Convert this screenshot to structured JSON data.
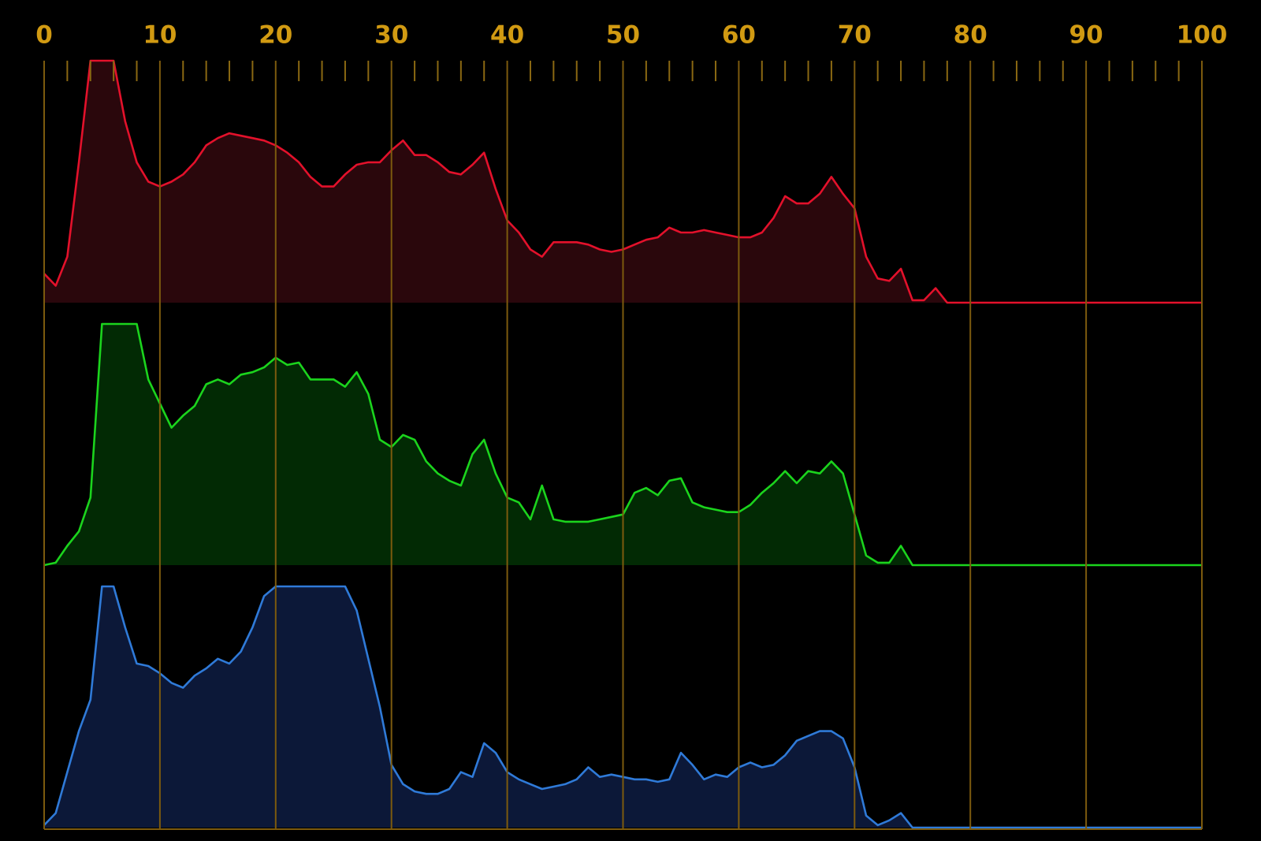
{
  "chart_data": {
    "type": "area",
    "xlim": [
      0,
      100
    ],
    "ylim": [
      0,
      100
    ],
    "xticks": [
      0,
      10,
      20,
      30,
      40,
      50,
      60,
      70,
      80,
      90,
      100
    ],
    "minor_xticks": [
      2,
      4,
      6,
      8,
      12,
      14,
      16,
      18,
      22,
      24,
      26,
      28,
      32,
      34,
      36,
      38,
      42,
      44,
      46,
      48,
      52,
      54,
      56,
      58,
      62,
      64,
      66,
      68,
      72,
      74,
      76,
      78,
      82,
      84,
      86,
      88,
      92,
      94,
      96,
      98
    ],
    "grid": true,
    "x": [
      0,
      1,
      2,
      3,
      4,
      5,
      6,
      7,
      8,
      9,
      10,
      11,
      12,
      13,
      14,
      15,
      16,
      17,
      18,
      19,
      20,
      21,
      22,
      23,
      24,
      25,
      26,
      27,
      28,
      29,
      30,
      31,
      32,
      33,
      34,
      35,
      36,
      37,
      38,
      39,
      40,
      41,
      42,
      43,
      44,
      45,
      46,
      47,
      48,
      49,
      50,
      51,
      52,
      53,
      54,
      55,
      56,
      57,
      58,
      59,
      60,
      61,
      62,
      63,
      64,
      65,
      66,
      67,
      68,
      69,
      70,
      71,
      72,
      73,
      74,
      75,
      76,
      77,
      78,
      79,
      80,
      81,
      82,
      83,
      84,
      85,
      86,
      87,
      88,
      89,
      90,
      91,
      92,
      93,
      94,
      95,
      96,
      97,
      98,
      99,
      100
    ],
    "series": [
      {
        "color": "#e3112b",
        "fill": "#2a070c",
        "values": [
          12,
          7,
          19,
          58,
          100,
          100,
          100,
          75,
          58,
          50,
          48,
          50,
          53,
          58,
          65,
          68,
          70,
          69,
          68,
          67,
          65,
          62,
          58,
          52,
          48,
          48,
          53,
          57,
          58,
          58,
          63,
          67,
          61,
          61,
          58,
          54,
          53,
          57,
          62,
          47,
          34,
          29,
          22,
          19,
          25,
          25,
          25,
          24,
          22,
          21,
          22,
          24,
          26,
          27,
          31,
          29,
          29,
          30,
          29,
          28,
          27,
          27,
          29,
          35,
          44,
          41,
          41,
          45,
          52,
          45,
          39,
          19,
          10,
          9,
          14,
          1,
          1,
          6,
          0,
          0,
          0,
          0,
          0,
          0,
          0,
          0,
          0,
          0,
          0,
          0,
          0,
          0,
          0,
          0,
          0,
          0,
          0,
          0,
          0,
          0,
          0
        ]
      },
      {
        "color": "#1bd41d",
        "fill": "#022a04",
        "values": [
          0,
          1,
          8,
          14,
          28,
          100,
          100,
          100,
          100,
          77,
          67,
          57,
          62,
          66,
          75,
          77,
          75,
          79,
          80,
          82,
          86,
          83,
          84,
          77,
          77,
          77,
          74,
          80,
          71,
          52,
          49,
          54,
          52,
          43,
          38,
          35,
          33,
          46,
          52,
          38,
          28,
          26,
          19,
          33,
          19,
          18,
          18,
          18,
          19,
          20,
          21,
          30,
          32,
          29,
          35,
          36,
          26,
          24,
          23,
          22,
          22,
          25,
          30,
          34,
          39,
          34,
          39,
          38,
          43,
          38,
          21,
          4,
          1,
          1,
          8,
          0,
          0,
          0,
          0,
          0,
          0,
          0,
          0,
          0,
          0,
          0,
          0,
          0,
          0,
          0,
          0,
          0,
          0,
          0,
          0,
          0,
          0,
          0,
          0,
          0,
          0
        ]
      },
      {
        "color": "#2f7ad8",
        "fill": "#0c1838",
        "values": [
          1,
          6,
          23,
          40,
          53,
          100,
          100,
          83,
          68,
          67,
          64,
          60,
          58,
          63,
          66,
          70,
          68,
          73,
          83,
          96,
          100,
          100,
          100,
          100,
          100,
          100,
          100,
          90,
          70,
          50,
          26,
          18,
          15,
          14,
          14,
          16,
          23,
          21,
          35,
          31,
          23,
          20,
          18,
          16,
          17,
          18,
          20,
          25,
          21,
          22,
          21,
          20,
          20,
          19,
          20,
          31,
          26,
          20,
          22,
          21,
          25,
          27,
          25,
          26,
          30,
          36,
          38,
          40,
          40,
          37,
          25,
          5,
          1,
          3,
          6,
          0,
          0,
          0,
          0,
          0,
          0,
          0,
          0,
          0,
          0,
          0,
          0,
          0,
          0,
          0,
          0,
          0,
          0,
          0,
          0,
          0,
          0,
          0,
          0,
          0,
          0
        ]
      }
    ]
  }
}
